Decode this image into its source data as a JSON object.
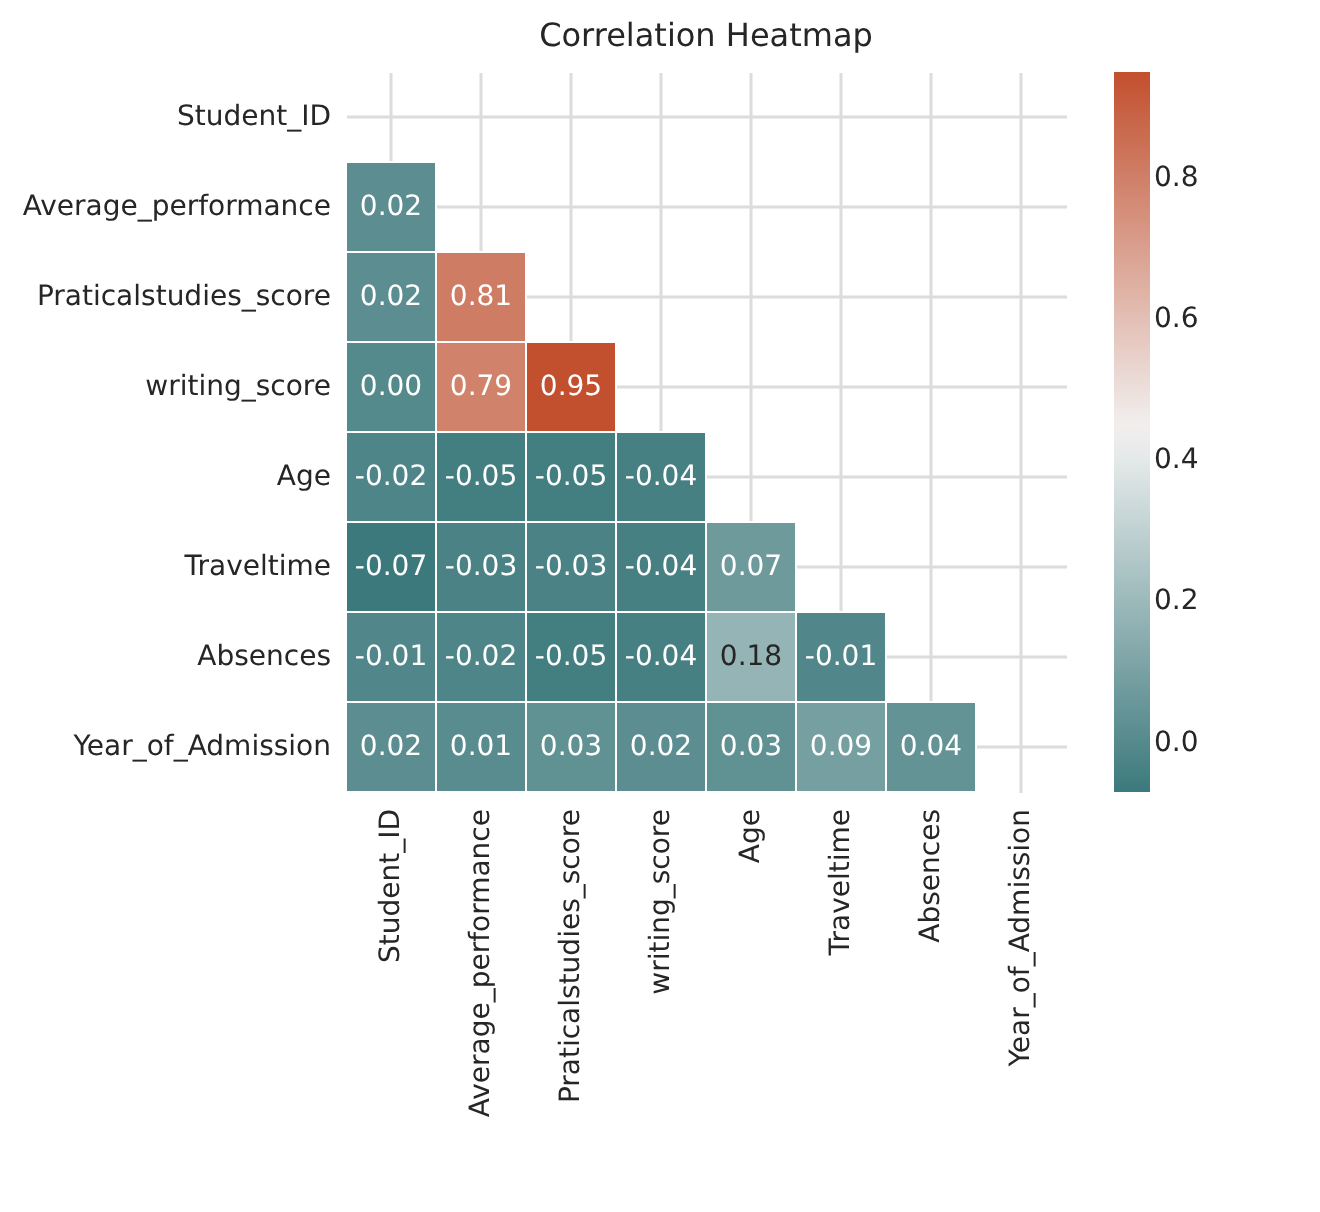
{
  "chart_data": {
    "type": "heatmap",
    "title": "Correlation Heatmap",
    "categories": [
      "Student_ID",
      "Average_performance",
      "Praticalstudies_score",
      "writing_score",
      "Age",
      "Traveltime",
      "Absences",
      "Year_of_Admission"
    ],
    "y_categories": [
      "Student_ID",
      "Average_performance",
      "Praticalstudies_score",
      "writing_score",
      "Age",
      "Traveltime",
      "Absences",
      "Year_of_Admission"
    ],
    "cells": [
      [
        null,
        null,
        null,
        null,
        null,
        null,
        null,
        null
      ],
      [
        0.02,
        null,
        null,
        null,
        null,
        null,
        null,
        null
      ],
      [
        0.02,
        0.81,
        null,
        null,
        null,
        null,
        null,
        null
      ],
      [
        0.0,
        0.79,
        0.95,
        null,
        null,
        null,
        null,
        null
      ],
      [
        -0.02,
        -0.05,
        -0.05,
        -0.04,
        null,
        null,
        null,
        null
      ],
      [
        -0.07,
        -0.03,
        -0.03,
        -0.04,
        0.07,
        null,
        null,
        null
      ],
      [
        -0.01,
        -0.02,
        -0.05,
        -0.04,
        0.18,
        -0.01,
        null,
        null
      ],
      [
        0.02,
        0.01,
        0.03,
        0.02,
        0.03,
        0.09,
        0.04,
        null
      ]
    ],
    "cell_labels": [
      [
        null,
        null,
        null,
        null,
        null,
        null,
        null,
        null
      ],
      [
        "0.02",
        null,
        null,
        null,
        null,
        null,
        null,
        null
      ],
      [
        "0.02",
        "0.81",
        null,
        null,
        null,
        null,
        null,
        null
      ],
      [
        "0.00",
        "0.79",
        "0.95",
        null,
        null,
        null,
        null,
        null
      ],
      [
        "-0.02",
        "-0.05",
        "-0.05",
        "-0.04",
        null,
        null,
        null,
        null
      ],
      [
        "-0.07",
        "-0.03",
        "-0.03",
        "-0.04",
        "0.07",
        null,
        null,
        null
      ],
      [
        "-0.01",
        "-0.02",
        "-0.05",
        "-0.04",
        "0.18",
        "-0.01",
        null,
        null
      ],
      [
        "0.02",
        "0.01",
        "0.03",
        "0.02",
        "0.03",
        "0.09",
        "0.04",
        null
      ]
    ],
    "clim": [
      -0.07,
      0.95
    ],
    "cticks": [
      {
        "value": 0,
        "label": "0.0"
      },
      0.2,
      0.4,
      0.6,
      0.8
    ],
    "grid": true
  }
}
